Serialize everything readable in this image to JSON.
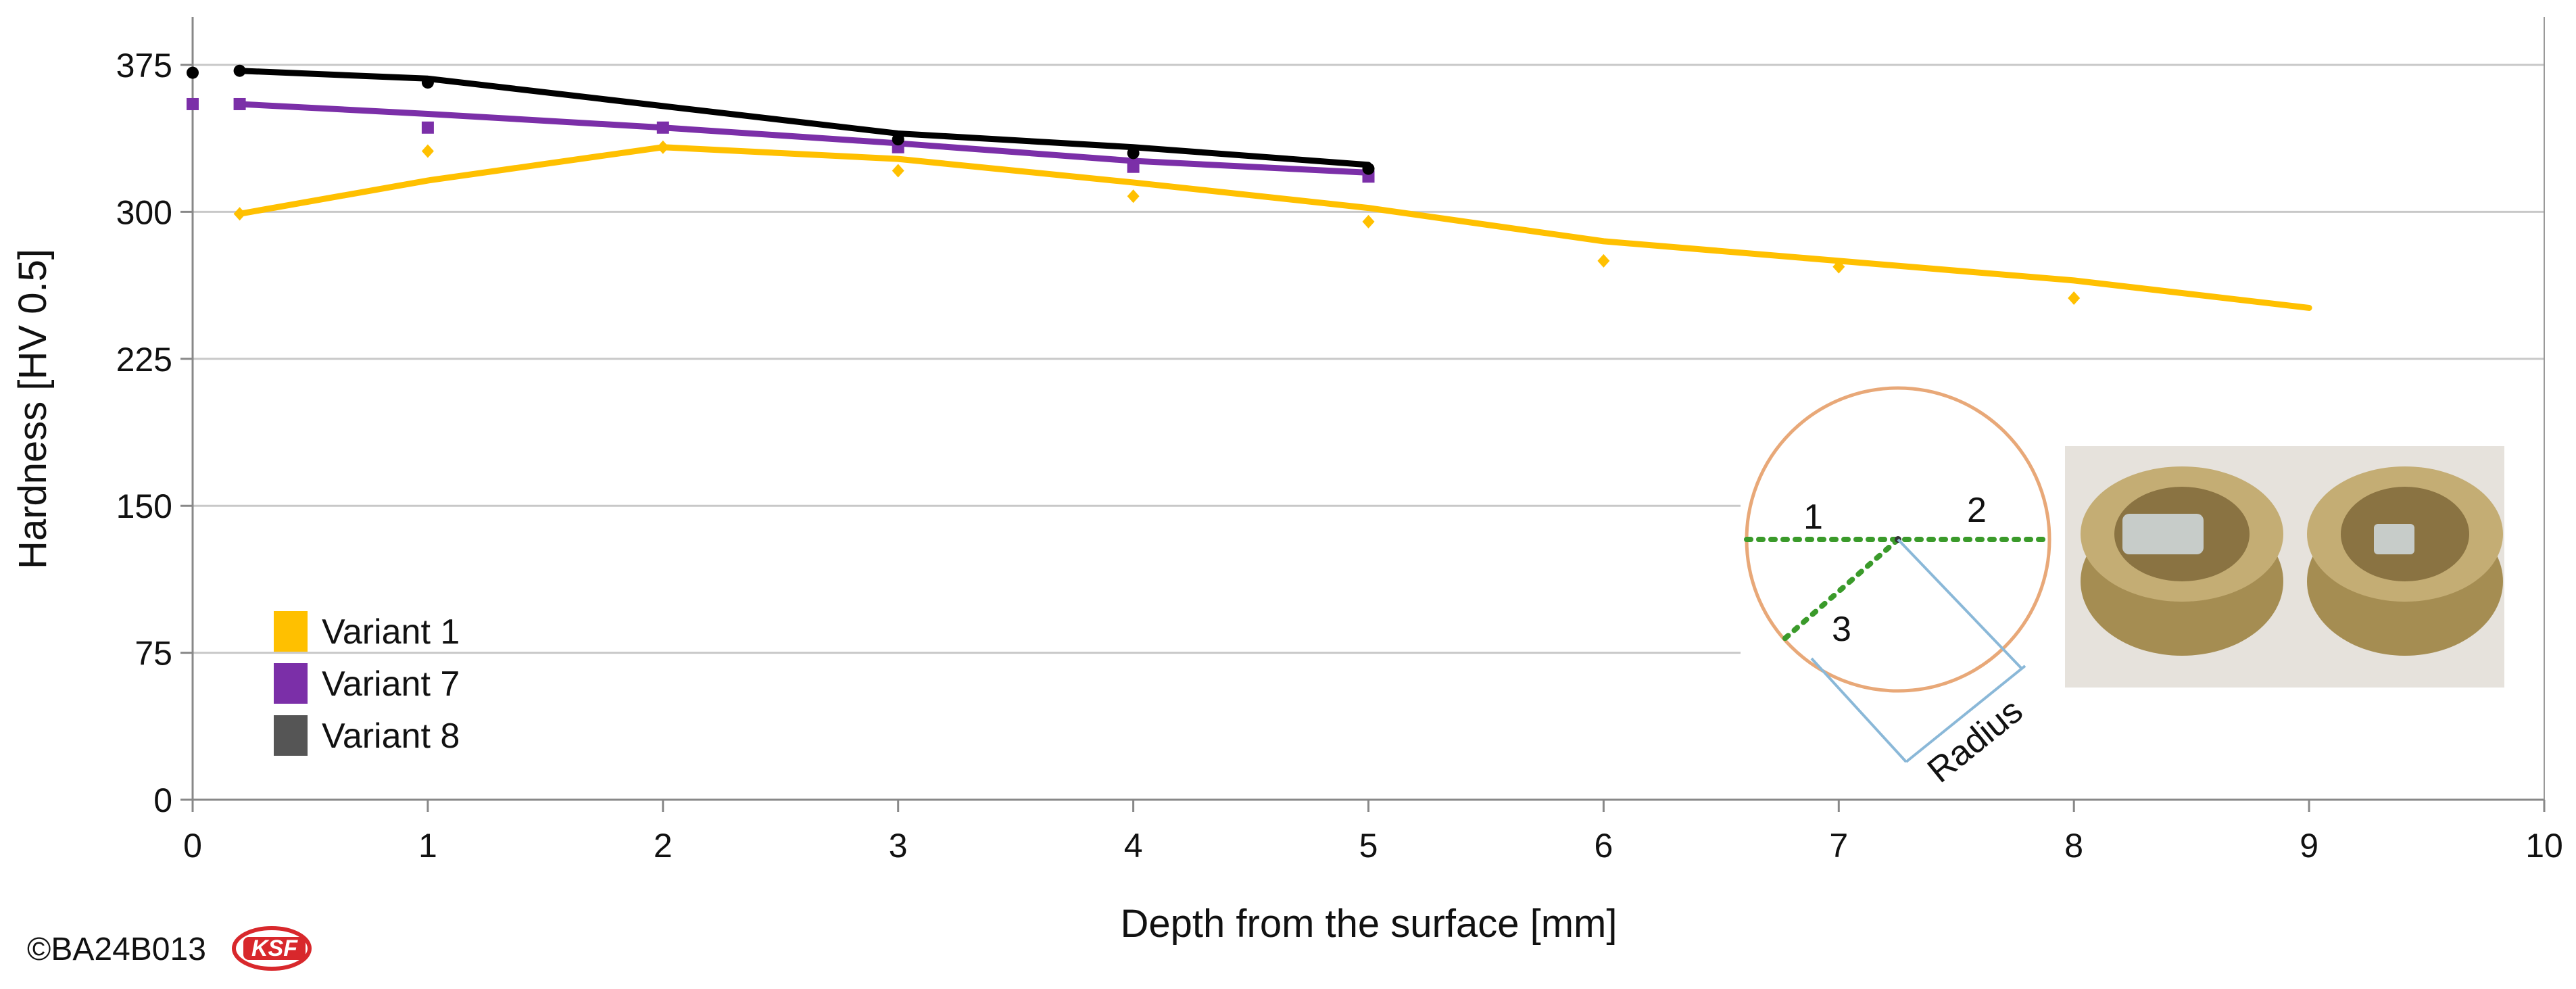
{
  "chart_data": {
    "type": "line",
    "title": "",
    "xlabel": "Depth from the surface [mm]",
    "ylabel": "Hardness [HV 0.5]",
    "xlim": [
      0,
      10
    ],
    "ylim": [
      0,
      400
    ],
    "xticks": [
      0,
      1,
      2,
      3,
      4,
      5,
      6,
      7,
      8,
      9,
      10
    ],
    "yticks": [
      0,
      75,
      150,
      225,
      300,
      375
    ],
    "grid": "horizontal",
    "legend_position": "bottom-left",
    "series": [
      {
        "name": "Variant 1",
        "color": "#ffc000",
        "marker": "diamond",
        "points_x": [
          0.2,
          1,
          2,
          3,
          4,
          5,
          6,
          7,
          8
        ],
        "points_y": [
          299,
          331,
          333,
          321,
          308,
          295,
          275,
          272,
          256
        ],
        "line_x": [
          0.2,
          1,
          2,
          3,
          4,
          5,
          6,
          7,
          8,
          9
        ],
        "line_y": [
          299,
          316,
          333,
          327,
          315,
          302,
          285,
          275,
          265,
          251
        ]
      },
      {
        "name": "Variant 7",
        "color": "#7b2fa8",
        "marker": "square",
        "points_x": [
          0,
          0.2,
          1,
          2,
          3,
          4,
          5
        ],
        "points_y": [
          355,
          355,
          343,
          343,
          333,
          323,
          318
        ],
        "line_x": [
          0.2,
          1,
          2,
          3,
          4,
          5
        ],
        "line_y": [
          355,
          350,
          343,
          335,
          326,
          320
        ]
      },
      {
        "name": "Variant 8",
        "color": "#000000",
        "marker": "circle",
        "points_x": [
          0,
          0.2,
          1,
          3,
          4,
          5
        ],
        "points_y": [
          371,
          372,
          366,
          337,
          330,
          322
        ],
        "line_x": [
          0.2,
          1,
          2,
          3,
          4,
          5
        ],
        "line_y": [
          372,
          368,
          354,
          340,
          333,
          324
        ]
      }
    ],
    "inset": {
      "labels": [
        "1",
        "2",
        "3"
      ],
      "radius_label": "Radius"
    }
  },
  "copyright": "©BA24B013",
  "logo_text": "KSF"
}
